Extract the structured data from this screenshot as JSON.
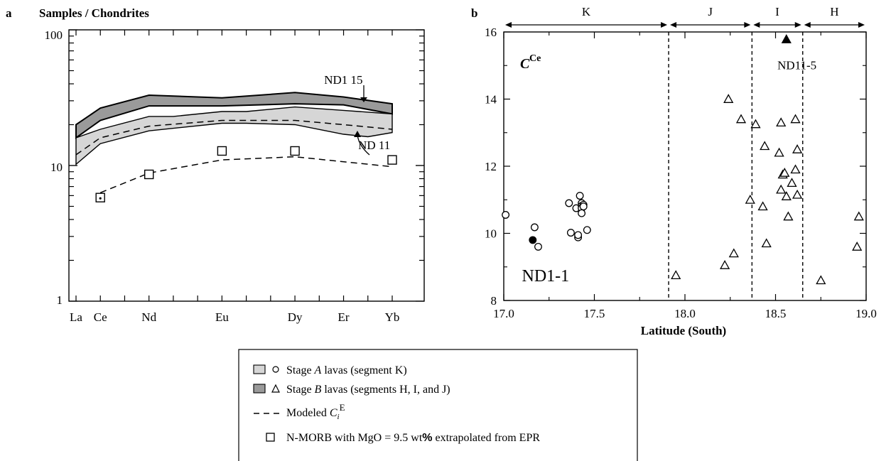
{
  "chart_data": [
    {
      "panel_label": "a",
      "type": "line",
      "title": "Samples / Chondrites",
      "log_scale_y": true,
      "ylim": [
        1,
        100
      ],
      "ytick_labels": [
        "1",
        "10",
        "100"
      ],
      "categories": [
        "La",
        "Ce",
        "Nd",
        "Eu",
        "Dy",
        "Er",
        "Yb"
      ],
      "category_x_index": [
        0,
        1,
        3,
        6,
        9,
        11,
        13
      ],
      "bands": [
        {
          "legend_ref": "stage_b",
          "fill": "#9a9a9a",
          "upper": {
            "x": [
              0,
              1,
              3,
              6,
              9,
              11,
              13
            ],
            "y": [
              20,
              26.5,
              33,
              31.5,
              34.5,
              32,
              28.5
            ]
          },
          "lower": {
            "x": [
              0,
              1,
              3,
              6,
              9,
              11,
              13
            ],
            "y": [
              16,
              21.5,
              27.5,
              27.5,
              28.5,
              28,
              24
            ]
          }
        },
        {
          "legend_ref": "stage_a",
          "fill": "#d6d6d6",
          "upper": {
            "x": [
              0,
              1,
              3,
              4,
              6,
              7,
              9,
              11,
              13
            ],
            "y": [
              16,
              18.5,
              23,
              23,
              25,
              25,
              27,
              25.5,
              24
            ]
          },
          "lower": {
            "x": [
              0,
              1,
              3,
              6,
              7,
              9,
              11,
              12,
              13
            ],
            "y": [
              10.2,
              14.5,
              18,
              20.5,
              20.5,
              20,
              17,
              16.3,
              17.5
            ]
          }
        }
      ],
      "modeled_band_line": {
        "x": [
          0,
          1,
          3,
          6,
          9,
          11,
          13
        ],
        "y": [
          12,
          16,
          19.5,
          21.5,
          21.5,
          20,
          18.5
        ]
      },
      "modeled_nmorb_line": {
        "x": [
          1,
          3,
          6,
          9,
          13
        ],
        "y": [
          6.3,
          8.8,
          11,
          11.6,
          9.8
        ]
      },
      "nmorb_points": {
        "x": [
          1,
          3,
          6,
          9,
          13
        ],
        "y": [
          5.8,
          8.6,
          12.8,
          12.8,
          11
        ]
      },
      "annotations": [
        {
          "text": "ND1 15",
          "x": 10.2,
          "y": 40
        },
        {
          "text": "ND 11",
          "x": 11.6,
          "y": 13.2
        }
      ]
    },
    {
      "panel_label": "b",
      "type": "scatter",
      "y_label_main": "C",
      "y_label_sup": "Ce",
      "xlabel": "Latitude (South)",
      "xlim": [
        17.0,
        19.0
      ],
      "ylim": [
        8,
        16
      ],
      "xticks": [
        17.0,
        17.5,
        18.0,
        18.5,
        19.0
      ],
      "xtick_labels": [
        "17.0",
        "17.5",
        "18.0",
        "18.5",
        "19.0"
      ],
      "yticks": [
        8,
        10,
        12,
        14,
        16
      ],
      "ytick_labels": [
        "8",
        "10",
        "12",
        "14",
        "16"
      ],
      "segment_boundaries": [
        17.91,
        18.37,
        18.65
      ],
      "segments": [
        {
          "name": "K",
          "from": 17.0,
          "to": 17.91
        },
        {
          "name": "J",
          "from": 17.91,
          "to": 18.37
        },
        {
          "name": "I",
          "from": 18.37,
          "to": 18.65
        },
        {
          "name": "H",
          "from": 18.65,
          "to": 19.0
        }
      ],
      "series": [
        {
          "legend_ref": "stage_a",
          "marker": "circle",
          "x": [
            17.01,
            17.17,
            17.19,
            17.36,
            17.37,
            17.4,
            17.41,
            17.41,
            17.42,
            17.43,
            17.43,
            17.43,
            17.43,
            17.44,
            17.44,
            17.46
          ],
          "y": [
            10.55,
            10.18,
            9.6,
            10.9,
            10.02,
            10.75,
            9.88,
            9.95,
            11.12,
            10.9,
            10.82,
            10.75,
            10.6,
            10.85,
            10.8,
            10.1
          ]
        },
        {
          "legend_ref": "stage_b",
          "marker": "triangle",
          "x": [
            17.95,
            18.22,
            18.24,
            18.27,
            18.31,
            18.36,
            18.39,
            18.43,
            18.44,
            18.45,
            18.52,
            18.53,
            18.53,
            18.54,
            18.55,
            18.56,
            18.57,
            18.59,
            18.61,
            18.61,
            18.62,
            18.62,
            18.75,
            18.95,
            18.96
          ],
          "y": [
            8.75,
            9.05,
            14.0,
            9.4,
            13.4,
            11.0,
            13.25,
            10.8,
            12.6,
            9.7,
            12.4,
            13.3,
            11.3,
            11.75,
            11.8,
            11.1,
            10.5,
            11.5,
            11.9,
            13.4,
            12.5,
            11.15,
            8.6,
            9.6,
            10.5
          ]
        }
      ],
      "highlighted_points": [
        {
          "marker": "circle",
          "x": 17.16,
          "y": 9.8
        },
        {
          "marker": "triangle",
          "x": 18.56,
          "y": 15.78
        }
      ],
      "annotations": [
        {
          "text": "ND1-1",
          "x": 17.1,
          "y": 9.1
        },
        {
          "text": "ND11-5",
          "x": 18.51,
          "y": 15.0
        }
      ]
    }
  ],
  "legend": {
    "items": [
      {
        "id": "stage_a",
        "pre": "Stage ",
        "italic": "A",
        "post": " lavas (segment K)"
      },
      {
        "id": "stage_b",
        "pre": "Stage ",
        "italic": "B",
        "post": " lavas (segments H, I, and J)"
      },
      {
        "id": "modeled",
        "pre": "Modeled ",
        "italic": "C",
        "sub": "i",
        "sup": "E",
        "post": ""
      },
      {
        "id": "nmorb",
        "pre": "N-MORB with MgO = 9.5 wt",
        "bold": "%",
        "post": " extrapolated from EPR"
      }
    ]
  },
  "colors": {
    "stage_a_fill": "#d6d6d6",
    "stage_b_fill": "#9a9a9a",
    "ink": "#000000"
  }
}
